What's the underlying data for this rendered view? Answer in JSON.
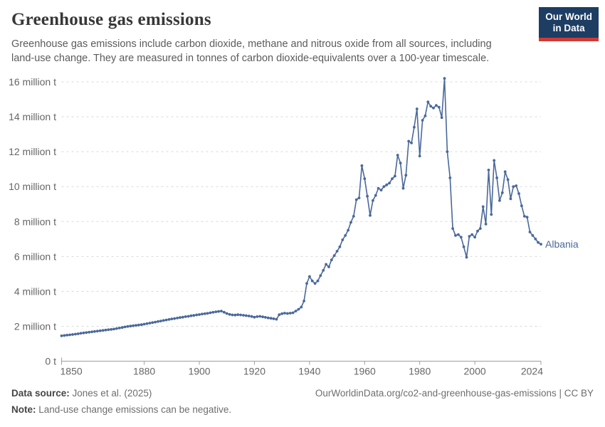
{
  "header": {
    "title": "Greenhouse gas emissions",
    "subtitle_lines": [
      "Greenhouse gas emissions include carbon dioxide, methane and nitrous oxide from all sources, including",
      "land-use change. They are measured in tonnes of carbon dioxide-equivalents over a 100-year timescale."
    ],
    "logo": {
      "line1": "Our World",
      "line2": "in Data",
      "bg_color": "#1d3d63",
      "bar_color": "#cf3a35"
    }
  },
  "chart_data": {
    "type": "line",
    "title": "Greenhouse gas emissions",
    "entity_label": "Albania",
    "line_color": "#4a689b",
    "grid": true,
    "legend_position": "end-of-line-label",
    "x": {
      "label": "",
      "min": 1850,
      "max": 2024,
      "ticks": [
        1850,
        1880,
        1900,
        1920,
        1940,
        1960,
        1980,
        2000,
        2024
      ]
    },
    "y": {
      "label": "",
      "min": 0,
      "max": 16,
      "tick_values": [
        0,
        2,
        4,
        6,
        8,
        10,
        12,
        14,
        16
      ],
      "tick_labels": [
        "0 t",
        "2 million t",
        "4 million t",
        "6 million t",
        "8 million t",
        "10 million t",
        "12 million t",
        "14 million t",
        "16 million t"
      ],
      "unit": "million tonnes CO2-equivalents"
    },
    "series": [
      {
        "name": "Albania",
        "start_year": 1850,
        "values": [
          1.45,
          1.47,
          1.49,
          1.51,
          1.53,
          1.55,
          1.57,
          1.6,
          1.62,
          1.64,
          1.66,
          1.68,
          1.7,
          1.72,
          1.74,
          1.76,
          1.78,
          1.8,
          1.82,
          1.84,
          1.87,
          1.9,
          1.93,
          1.96,
          1.99,
          2.01,
          2.03,
          2.05,
          2.07,
          2.09,
          2.12,
          2.15,
          2.18,
          2.21,
          2.24,
          2.27,
          2.3,
          2.33,
          2.36,
          2.39,
          2.42,
          2.44,
          2.47,
          2.5,
          2.52,
          2.55,
          2.57,
          2.6,
          2.62,
          2.65,
          2.67,
          2.7,
          2.72,
          2.74,
          2.77,
          2.8,
          2.83,
          2.85,
          2.87,
          2.8,
          2.73,
          2.68,
          2.65,
          2.64,
          2.66,
          2.65,
          2.63,
          2.61,
          2.59,
          2.56,
          2.52,
          2.55,
          2.57,
          2.54,
          2.51,
          2.48,
          2.46,
          2.43,
          2.4,
          2.66,
          2.72,
          2.75,
          2.73,
          2.75,
          2.77,
          2.87,
          2.97,
          3.1,
          3.45,
          4.45,
          4.85,
          4.6,
          4.45,
          4.6,
          4.9,
          5.2,
          5.55,
          5.4,
          5.8,
          6.05,
          6.3,
          6.55,
          6.95,
          7.2,
          7.5,
          7.95,
          8.3,
          9.25,
          9.35,
          11.2,
          10.45,
          9.45,
          8.35,
          9.2,
          9.5,
          9.9,
          9.8,
          10.0,
          10.1,
          10.2,
          10.45,
          10.6,
          11.8,
          11.35,
          9.9,
          10.65,
          12.6,
          12.5,
          13.4,
          14.45,
          11.75,
          13.8,
          14.05,
          14.85,
          14.6,
          14.5,
          14.65,
          14.55,
          13.95,
          16.2,
          12.0,
          10.5,
          7.6,
          7.2,
          7.25,
          7.1,
          6.55,
          5.95,
          7.15,
          7.25,
          7.1,
          7.45,
          7.6,
          8.85,
          7.85,
          10.95,
          8.4,
          11.5,
          10.5,
          9.2,
          9.65,
          10.85,
          10.4,
          9.3,
          10.0,
          10.05,
          9.6,
          8.9,
          8.3,
          8.25,
          7.4,
          7.2,
          7.0,
          6.8,
          6.7
        ]
      }
    ]
  },
  "footer": {
    "source_label": "Data source:",
    "source_value": " Jones et al. (2025)",
    "url_text": "OurWorldinData.org/co2-and-greenhouse-gas-emissions | CC BY",
    "note_label": "Note:",
    "note_value": " Land-use change emissions can be negative."
  },
  "colors": {
    "grid": "#d9d9d9",
    "axis": "#9e9e9e",
    "tick_text": "#666666",
    "title_text": "#383838",
    "subtitle_text": "#5b5b5b"
  }
}
